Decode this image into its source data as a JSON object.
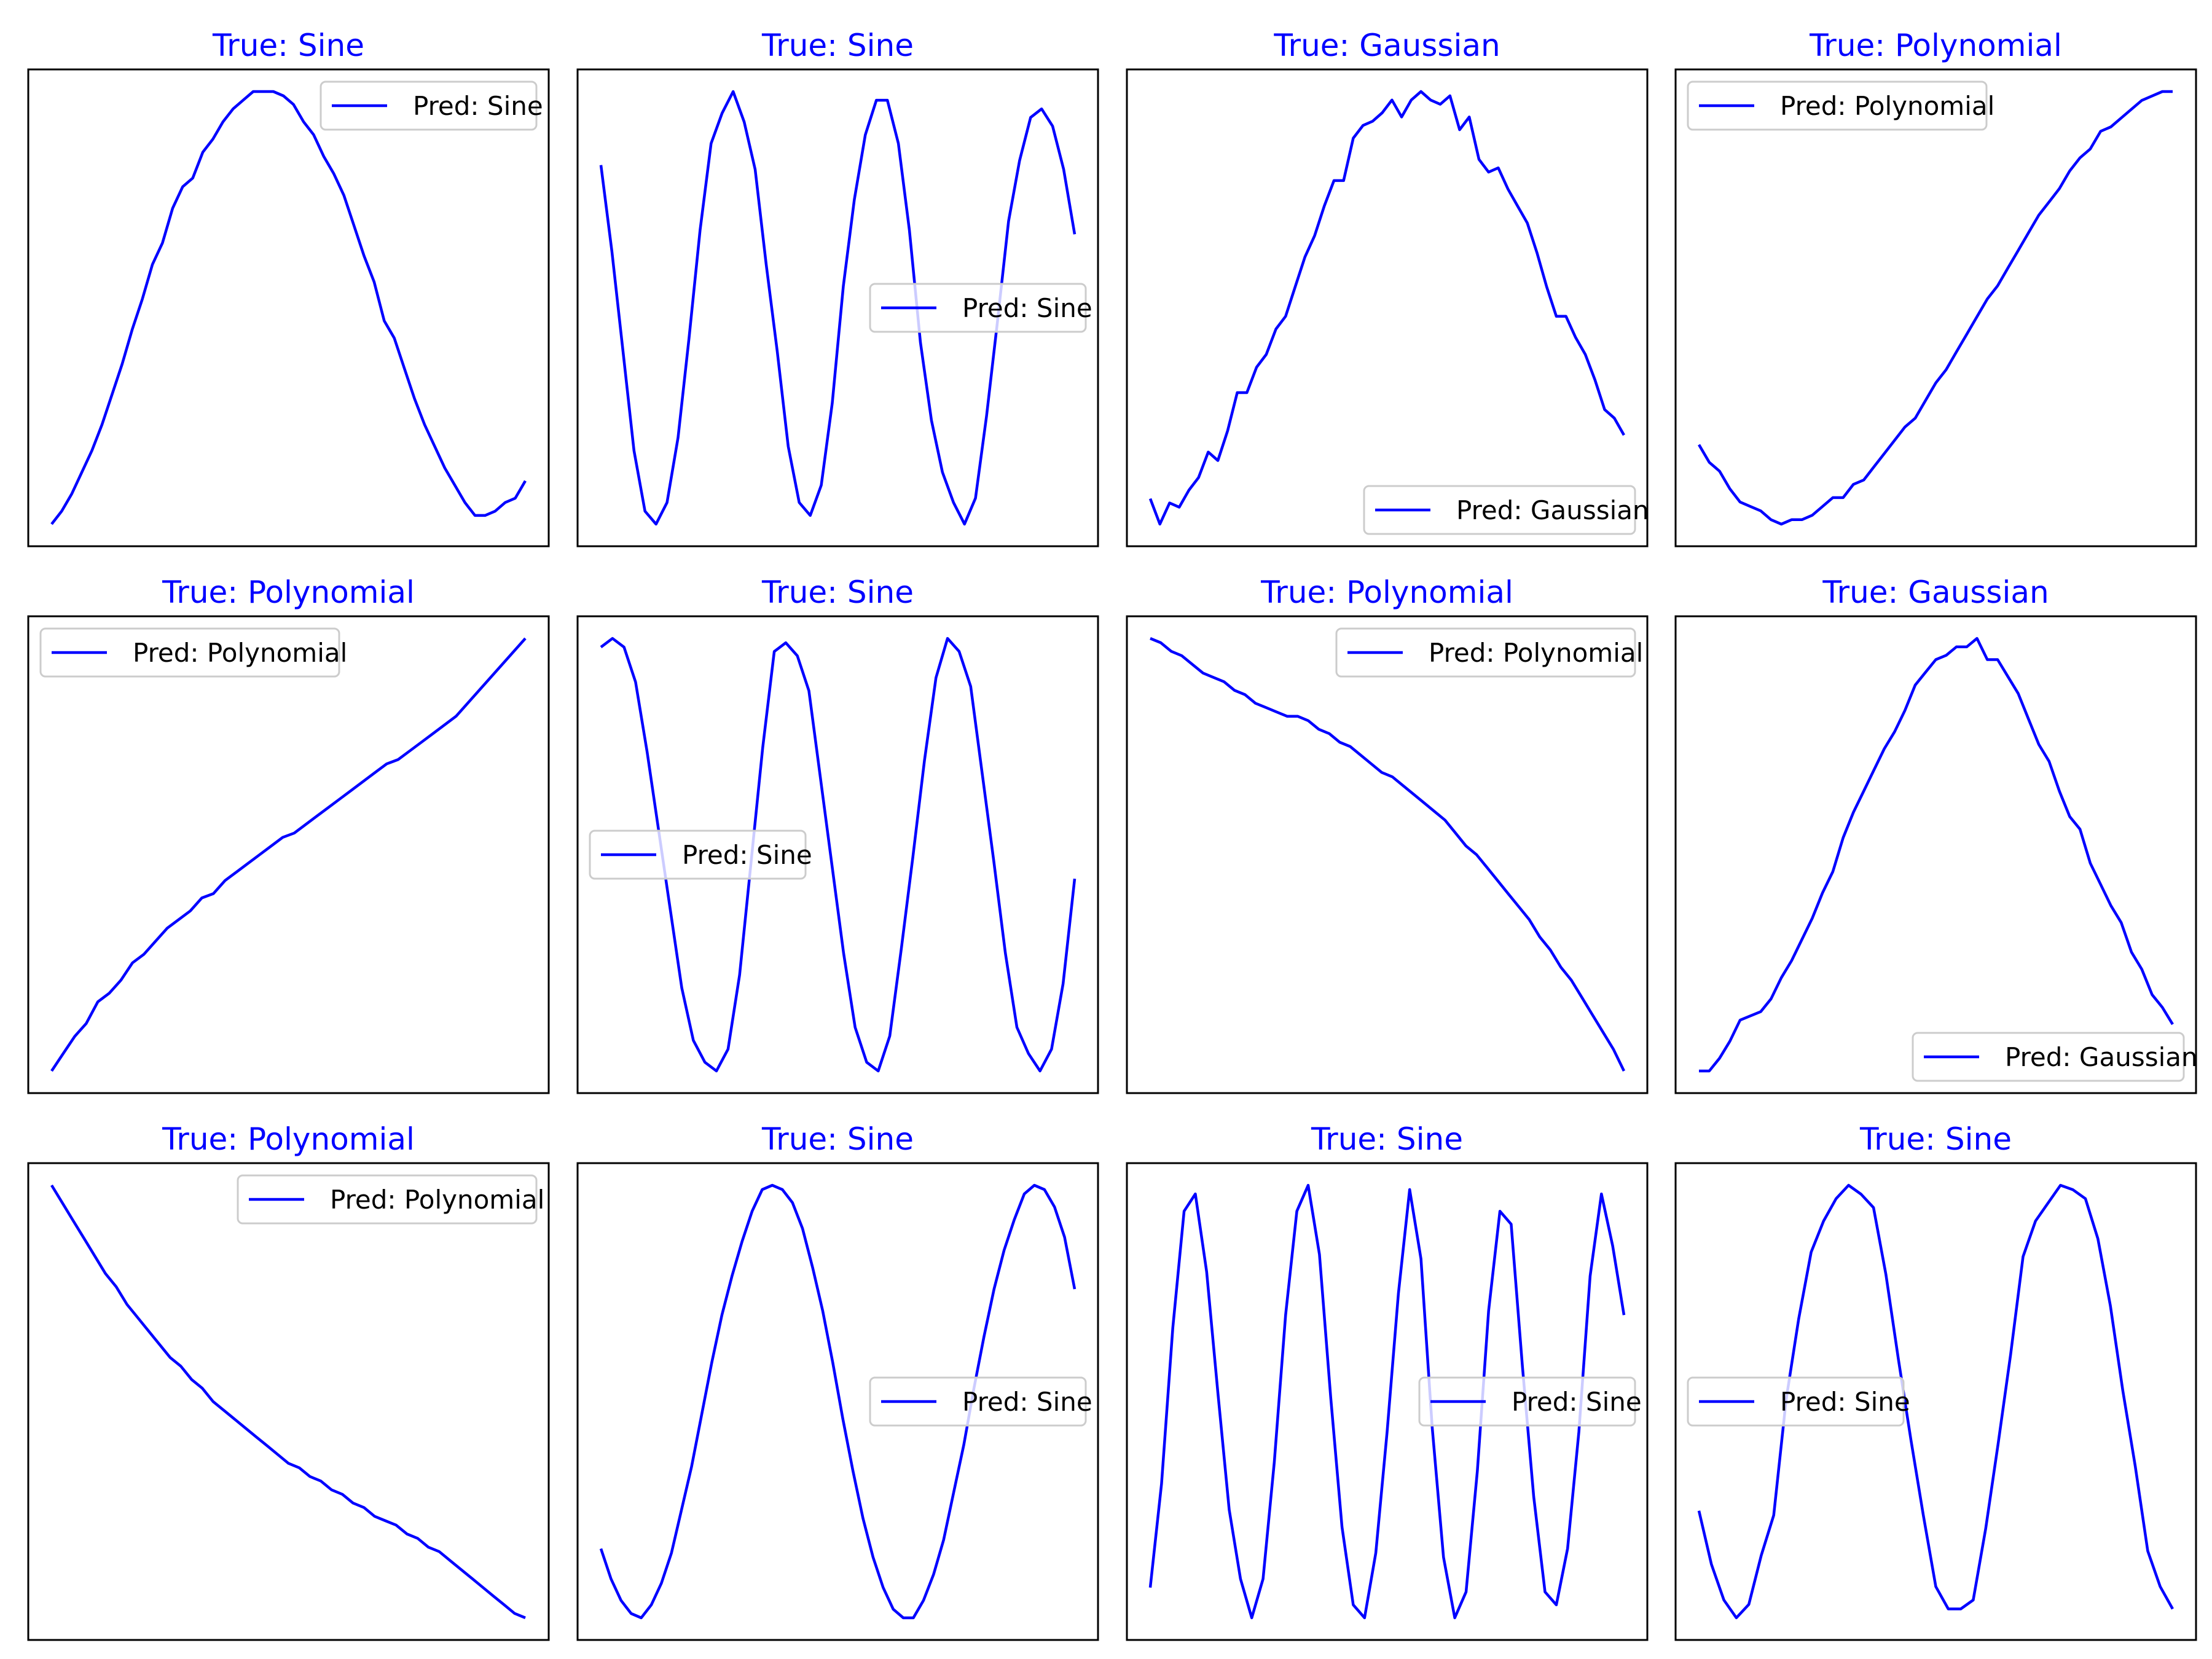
{
  "colors": {
    "line": "#0000ff",
    "title": "#0000ff"
  },
  "chart_data": [
    {
      "type": "line",
      "title": "True: Sine",
      "series": [
        {
          "name": "Pred: Sine",
          "y": [
            0.0,
            0.03,
            0.07,
            0.12,
            0.17,
            0.23,
            0.3,
            0.37,
            0.45,
            0.52,
            0.6,
            0.65,
            0.73,
            0.78,
            0.8,
            0.86,
            0.89,
            0.93,
            0.96,
            0.98,
            1.0,
            1.0,
            1.0,
            0.99,
            0.97,
            0.93,
            0.9,
            0.85,
            0.81,
            0.76,
            0.69,
            0.62,
            0.56,
            0.47,
            0.43,
            0.36,
            0.29,
            0.23,
            0.18,
            0.13,
            0.09,
            0.05,
            0.02,
            0.02,
            0.03,
            0.05,
            0.06,
            0.1
          ]
        }
      ]
    },
    {
      "type": "line",
      "title": "True: Sine",
      "series": [
        {
          "name": "Pred: Sine",
          "y": [
            0.83,
            0.63,
            0.4,
            0.17,
            0.03,
            0.0,
            0.05,
            0.2,
            0.43,
            0.68,
            0.88,
            0.95,
            1.0,
            0.93,
            0.82,
            0.6,
            0.4,
            0.18,
            0.05,
            0.02,
            0.09,
            0.28,
            0.55,
            0.75,
            0.9,
            0.98,
            0.98,
            0.88,
            0.68,
            0.42,
            0.24,
            0.12,
            0.05,
            0.0,
            0.06,
            0.25,
            0.47,
            0.7,
            0.84,
            0.94,
            0.96,
            0.92,
            0.82,
            0.67
          ]
        }
      ]
    },
    {
      "type": "line",
      "title": "True: Gaussian",
      "series": [
        {
          "name": "Pred: Gaussian",
          "y": [
            0.06,
            0.0,
            0.05,
            0.04,
            0.08,
            0.11,
            0.17,
            0.15,
            0.22,
            0.31,
            0.31,
            0.37,
            0.4,
            0.46,
            0.49,
            0.56,
            0.63,
            0.68,
            0.75,
            0.81,
            0.81,
            0.91,
            0.94,
            0.95,
            0.97,
            1.0,
            0.96,
            1.0,
            1.02,
            1.0,
            0.99,
            1.01,
            0.93,
            0.96,
            0.86,
            0.83,
            0.84,
            0.79,
            0.75,
            0.71,
            0.64,
            0.56,
            0.49,
            0.49,
            0.44,
            0.4,
            0.34,
            0.27,
            0.25,
            0.21
          ]
        }
      ]
    },
    {
      "type": "line",
      "title": "True: Polynomial",
      "series": [
        {
          "name": "Pred: Polynomial",
          "y": [
            0.2,
            0.16,
            0.14,
            0.1,
            0.07,
            0.06,
            0.05,
            0.03,
            0.02,
            0.03,
            0.03,
            0.04,
            0.06,
            0.08,
            0.08,
            0.11,
            0.12,
            0.15,
            0.18,
            0.21,
            0.24,
            0.26,
            0.3,
            0.34,
            0.37,
            0.41,
            0.45,
            0.49,
            0.53,
            0.56,
            0.6,
            0.64,
            0.68,
            0.72,
            0.75,
            0.78,
            0.82,
            0.85,
            0.87,
            0.91,
            0.92,
            0.94,
            0.96,
            0.98,
            0.99,
            1.0,
            1.0
          ]
        }
      ]
    },
    {
      "type": "line",
      "title": "True: Polynomial",
      "series": [
        {
          "name": "Pred: Polynomial",
          "y": [
            0.0,
            0.04,
            0.08,
            0.11,
            0.16,
            0.18,
            0.21,
            0.25,
            0.27,
            0.3,
            0.33,
            0.35,
            0.37,
            0.4,
            0.41,
            0.44,
            0.46,
            0.48,
            0.5,
            0.52,
            0.54,
            0.55,
            0.57,
            0.59,
            0.61,
            0.63,
            0.65,
            0.67,
            0.69,
            0.71,
            0.72,
            0.74,
            0.76,
            0.78,
            0.8,
            0.82,
            0.85,
            0.88,
            0.91,
            0.94,
            0.97,
            1.0
          ]
        }
      ]
    },
    {
      "type": "line",
      "title": "True: Sine",
      "series": [
        {
          "name": "Pred: Sine",
          "y": [
            0.97,
            0.99,
            0.97,
            0.89,
            0.73,
            0.55,
            0.37,
            0.19,
            0.07,
            0.02,
            0.0,
            0.05,
            0.22,
            0.48,
            0.74,
            0.96,
            0.98,
            0.95,
            0.87,
            0.67,
            0.47,
            0.27,
            0.1,
            0.02,
            0.0,
            0.08,
            0.28,
            0.49,
            0.71,
            0.9,
            0.99,
            0.96,
            0.88,
            0.68,
            0.48,
            0.27,
            0.1,
            0.04,
            0.0,
            0.05,
            0.2,
            0.44
          ]
        }
      ]
    },
    {
      "type": "line",
      "title": "True: Polynomial",
      "series": [
        {
          "name": "Pred: Polynomial",
          "y": [
            1.0,
            0.99,
            0.97,
            0.96,
            0.94,
            0.92,
            0.91,
            0.9,
            0.88,
            0.87,
            0.85,
            0.84,
            0.83,
            0.82,
            0.82,
            0.81,
            0.79,
            0.78,
            0.76,
            0.75,
            0.73,
            0.71,
            0.69,
            0.68,
            0.66,
            0.64,
            0.62,
            0.6,
            0.58,
            0.55,
            0.52,
            0.5,
            0.47,
            0.44,
            0.41,
            0.38,
            0.35,
            0.31,
            0.28,
            0.24,
            0.21,
            0.17,
            0.13,
            0.09,
            0.05,
            0.0
          ]
        }
      ]
    },
    {
      "type": "line",
      "title": "True: Gaussian",
      "series": [
        {
          "name": "Pred: Gaussian",
          "y": [
            0.02,
            0.02,
            0.05,
            0.09,
            0.14,
            0.15,
            0.16,
            0.19,
            0.24,
            0.28,
            0.33,
            0.38,
            0.44,
            0.49,
            0.57,
            0.63,
            0.68,
            0.73,
            0.78,
            0.82,
            0.87,
            0.93,
            0.96,
            0.99,
            1.0,
            1.02,
            1.02,
            1.04,
            0.99,
            0.99,
            0.95,
            0.91,
            0.85,
            0.79,
            0.75,
            0.68,
            0.62,
            0.59,
            0.51,
            0.46,
            0.41,
            0.37,
            0.3,
            0.26,
            0.2,
            0.17,
            0.13
          ]
        }
      ]
    },
    {
      "type": "line",
      "title": "True: Polynomial",
      "series": [
        {
          "name": "Pred: Polynomial",
          "y": [
            1.0,
            0.96,
            0.92,
            0.88,
            0.84,
            0.8,
            0.77,
            0.73,
            0.7,
            0.67,
            0.64,
            0.61,
            0.59,
            0.56,
            0.54,
            0.51,
            0.49,
            0.47,
            0.45,
            0.43,
            0.41,
            0.39,
            0.37,
            0.36,
            0.34,
            0.33,
            0.31,
            0.3,
            0.28,
            0.27,
            0.25,
            0.24,
            0.23,
            0.21,
            0.2,
            0.18,
            0.17,
            0.15,
            0.13,
            0.11,
            0.09,
            0.07,
            0.05,
            0.03,
            0.02
          ]
        }
      ]
    },
    {
      "type": "line",
      "title": "True: Sine",
      "series": [
        {
          "name": "Pred: Sine",
          "y": [
            0.16,
            0.09,
            0.04,
            0.01,
            0.0,
            0.03,
            0.08,
            0.15,
            0.25,
            0.35,
            0.47,
            0.59,
            0.7,
            0.79,
            0.87,
            0.94,
            0.99,
            1.0,
            0.99,
            0.96,
            0.9,
            0.81,
            0.71,
            0.59,
            0.46,
            0.34,
            0.23,
            0.14,
            0.07,
            0.02,
            0.0,
            0.0,
            0.04,
            0.1,
            0.18,
            0.29,
            0.4,
            0.53,
            0.65,
            0.76,
            0.85,
            0.92,
            0.98,
            1.0,
            0.99,
            0.95,
            0.88,
            0.76
          ]
        }
      ]
    },
    {
      "type": "line",
      "title": "True: Sine",
      "series": [
        {
          "name": "Pred: Sine",
          "y": [
            0.07,
            0.31,
            0.67,
            0.94,
            0.98,
            0.8,
            0.52,
            0.25,
            0.09,
            0.0,
            0.09,
            0.36,
            0.7,
            0.94,
            1.0,
            0.84,
            0.51,
            0.21,
            0.03,
            0.0,
            0.15,
            0.43,
            0.75,
            0.99,
            0.83,
            0.44,
            0.14,
            0.0,
            0.06,
            0.34,
            0.71,
            0.94,
            0.91,
            0.58,
            0.28,
            0.06,
            0.03,
            0.16,
            0.43,
            0.79,
            0.98,
            0.86,
            0.7
          ]
        }
      ]
    },
    {
      "type": "line",
      "title": "True: Sine",
      "series": [
        {
          "name": "Pred: Sine",
          "y": [
            0.28,
            0.16,
            0.08,
            0.04,
            0.07,
            0.18,
            0.27,
            0.53,
            0.71,
            0.86,
            0.93,
            0.98,
            1.01,
            0.99,
            0.96,
            0.81,
            0.62,
            0.44,
            0.27,
            0.11,
            0.06,
            0.06,
            0.08,
            0.24,
            0.43,
            0.63,
            0.85,
            0.93,
            0.97,
            1.01,
            1.0,
            0.98,
            0.89,
            0.74,
            0.55,
            0.38,
            0.19,
            0.11,
            0.06
          ]
        }
      ]
    }
  ]
}
